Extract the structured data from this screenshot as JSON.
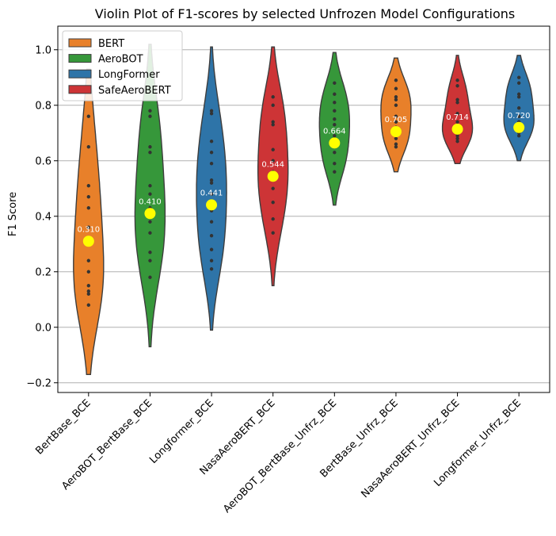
{
  "chart_data": {
    "type": "violin",
    "title": "Violin Plot of F1-scores by selected Unfrozen Model Configurations",
    "xlabel": "",
    "ylabel": "F1 Score",
    "ylim": [
      -0.235,
      1.085
    ],
    "yticks": [
      -0.2,
      0.0,
      0.2,
      0.4,
      0.6,
      0.8,
      1.0
    ],
    "ytick_labels": [
      "−0.2",
      "0.0",
      "0.2",
      "0.4",
      "0.6",
      "0.8",
      "1.0"
    ],
    "grid": "horizontal",
    "legend_position": "top-left",
    "legend": [
      {
        "label": "BERT",
        "color": "#e8802a"
      },
      {
        "label": "AeroBOT",
        "color": "#36973a"
      },
      {
        "label": "LongFormer",
        "color": "#2e74a8"
      },
      {
        "label": "SafeAeroBERT",
        "color": "#cd3436"
      }
    ],
    "categories": [
      "BertBase_BCE",
      "AeroBOT_BertBase_BCE",
      "Longformer_BCE",
      "NasaAeroBERT_BCE",
      "AeroBOT_BertBase_Unfrz_BCE",
      "BertBase_Unfrz_BCE",
      "NasaAeroBERT_Unfrz_BCE",
      "Longformer_Unfrz_BCE"
    ],
    "series": [
      {
        "category": "BertBase_BCE",
        "group": "BERT",
        "color": "#e8802a",
        "mean": 0.31,
        "mean_label": "0.310",
        "min": -0.17,
        "max": 0.93,
        "points": [
          0.08,
          0.12,
          0.13,
          0.15,
          0.2,
          0.24,
          0.36,
          0.43,
          0.47,
          0.51,
          0.65,
          0.76
        ]
      },
      {
        "category": "AeroBOT_BertBase_BCE",
        "group": "AeroBOT",
        "color": "#36973a",
        "mean": 0.41,
        "mean_label": "0.410",
        "min": -0.07,
        "max": 1.02,
        "points": [
          0.18,
          0.24,
          0.27,
          0.34,
          0.38,
          0.43,
          0.48,
          0.51,
          0.63,
          0.65,
          0.76,
          0.78
        ]
      },
      {
        "category": "Longformer_BCE",
        "group": "LongFormer",
        "color": "#2e74a8",
        "mean": 0.441,
        "mean_label": "0.441",
        "min": -0.01,
        "max": 1.01,
        "points": [
          0.21,
          0.24,
          0.28,
          0.33,
          0.38,
          0.42,
          0.48,
          0.52,
          0.53,
          0.59,
          0.63,
          0.67,
          0.77,
          0.78
        ]
      },
      {
        "category": "NasaAeroBERT_BCE",
        "group": "SafeAeroBERT",
        "color": "#cd3436",
        "mean": 0.544,
        "mean_label": "0.544",
        "min": 0.15,
        "max": 1.01,
        "points": [
          0.34,
          0.39,
          0.45,
          0.5,
          0.53,
          0.56,
          0.6,
          0.64,
          0.73,
          0.74,
          0.8,
          0.83
        ]
      },
      {
        "category": "AeroBOT_BertBase_Unfrz_BCE",
        "group": "AeroBOT",
        "color": "#36973a",
        "mean": 0.664,
        "mean_label": "0.664",
        "min": 0.44,
        "max": 0.99,
        "points": [
          0.56,
          0.59,
          0.63,
          0.65,
          0.69,
          0.73,
          0.75,
          0.78,
          0.81,
          0.84,
          0.88
        ]
      },
      {
        "category": "BertBase_Unfrz_BCE",
        "group": "BERT",
        "color": "#e8802a",
        "mean": 0.705,
        "mean_label": "0.705",
        "min": 0.56,
        "max": 0.97,
        "points": [
          0.65,
          0.66,
          0.68,
          0.72,
          0.74,
          0.76,
          0.8,
          0.82,
          0.83,
          0.86,
          0.89
        ]
      },
      {
        "category": "NasaAeroBERT_Unfrz_BCE",
        "group": "SafeAeroBERT",
        "color": "#cd3436",
        "mean": 0.714,
        "mean_label": "0.714",
        "min": 0.59,
        "max": 0.98,
        "points": [
          0.67,
          0.68,
          0.69,
          0.7,
          0.72,
          0.74,
          0.77,
          0.81,
          0.82,
          0.87,
          0.89
        ]
      },
      {
        "category": "Longformer_Unfrz_BCE",
        "group": "LongFormer",
        "color": "#2e74a8",
        "mean": 0.72,
        "mean_label": "0.720",
        "min": 0.6,
        "max": 0.98,
        "points": [
          0.69,
          0.7,
          0.72,
          0.74,
          0.76,
          0.79,
          0.83,
          0.84,
          0.88,
          0.9
        ]
      }
    ],
    "mean_marker_color": "#ffff00"
  }
}
